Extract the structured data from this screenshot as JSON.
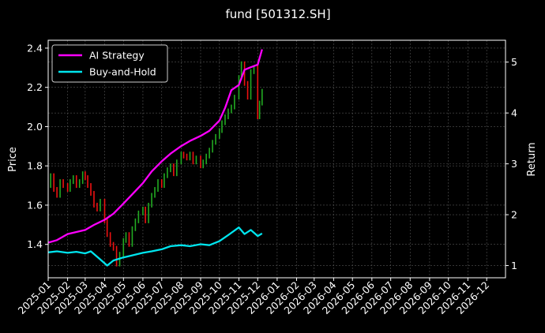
{
  "chart_data": {
    "type": "line",
    "title": "fund [501312.SH]",
    "ylabel_left": "Price",
    "ylabel_right": "Return",
    "x_ticks": [
      "2025-01",
      "2025-02",
      "2025-03",
      "2025-04",
      "2025-05",
      "2025-06",
      "2025-07",
      "2025-08",
      "2025-09",
      "2025-10",
      "2025-11",
      "2025-12",
      "2026-01",
      "2026-02",
      "2026-03",
      "2026-04",
      "2026-05",
      "2026-06",
      "2026-07",
      "2026-08",
      "2026-09",
      "2026-10",
      "2026-11",
      "2026-12"
    ],
    "xlim": [
      "2025-01-01",
      "2026-12-31"
    ],
    "ylim_left": [
      1.23,
      2.44
    ],
    "yticks_left": [
      1.4,
      1.6,
      1.8,
      2.0,
      2.2,
      2.4
    ],
    "ylim_right": [
      0.76,
      5.43
    ],
    "yticks_right": [
      1,
      2,
      3,
      4,
      5
    ],
    "grid": true,
    "legend_position": "top-left",
    "colors": {
      "background": "#000000",
      "ai": "#ff00ff",
      "bh": "#00e5ee",
      "up": "#22aa22",
      "down": "#ee1111",
      "grid": "#555555"
    },
    "series": [
      {
        "name": "AI Strategy",
        "axis": "right",
        "dates": [
          "2025-01-01",
          "2025-01-15",
          "2025-02-01",
          "2025-02-15",
          "2025-03-01",
          "2025-03-15",
          "2025-04-01",
          "2025-04-15",
          "2025-05-01",
          "2025-05-15",
          "2025-06-01",
          "2025-06-15",
          "2025-07-01",
          "2025-07-15",
          "2025-08-01",
          "2025-08-15",
          "2025-09-01",
          "2025-09-15",
          "2025-10-01",
          "2025-10-10",
          "2025-10-20",
          "2025-11-01",
          "2025-11-10",
          "2025-11-20",
          "2025-12-01",
          "2025-12-08"
        ],
        "values": [
          1.45,
          1.5,
          1.62,
          1.66,
          1.7,
          1.8,
          1.9,
          2.02,
          2.22,
          2.4,
          2.62,
          2.85,
          3.05,
          3.2,
          3.35,
          3.45,
          3.55,
          3.65,
          3.85,
          4.1,
          4.45,
          4.55,
          4.85,
          4.9,
          4.95,
          5.25
        ]
      },
      {
        "name": "Buy-and-Hold",
        "axis": "right",
        "dates": [
          "2025-01-01",
          "2025-01-15",
          "2025-02-01",
          "2025-02-15",
          "2025-03-01",
          "2025-03-10",
          "2025-03-25",
          "2025-04-05",
          "2025-04-15",
          "2025-05-01",
          "2025-05-15",
          "2025-06-01",
          "2025-06-15",
          "2025-07-01",
          "2025-07-15",
          "2025-08-01",
          "2025-08-15",
          "2025-09-01",
          "2025-09-15",
          "2025-10-01",
          "2025-10-15",
          "2025-11-01",
          "2025-11-10",
          "2025-11-20",
          "2025-12-01",
          "2025-12-08"
        ],
        "values": [
          1.26,
          1.28,
          1.25,
          1.27,
          1.24,
          1.28,
          1.12,
          1.0,
          1.1,
          1.16,
          1.2,
          1.25,
          1.28,
          1.32,
          1.38,
          1.4,
          1.38,
          1.42,
          1.4,
          1.48,
          1.6,
          1.75,
          1.62,
          1.7,
          1.58,
          1.63
        ]
      }
    ],
    "price_series": {
      "name": "Price",
      "axis": "left",
      "dates": [
        "2025-01-01",
        "2025-01-05",
        "2025-01-10",
        "2025-01-15",
        "2025-01-20",
        "2025-01-25",
        "2025-02-01",
        "2025-02-05",
        "2025-02-10",
        "2025-02-15",
        "2025-02-20",
        "2025-02-25",
        "2025-03-01",
        "2025-03-05",
        "2025-03-10",
        "2025-03-15",
        "2025-03-20",
        "2025-03-25",
        "2025-04-01",
        "2025-04-05",
        "2025-04-10",
        "2025-04-15",
        "2025-04-20",
        "2025-04-25",
        "2025-05-01",
        "2025-05-05",
        "2025-05-10",
        "2025-05-15",
        "2025-05-20",
        "2025-05-25",
        "2025-06-01",
        "2025-06-05",
        "2025-06-10",
        "2025-06-15",
        "2025-06-20",
        "2025-06-25",
        "2025-07-01",
        "2025-07-05",
        "2025-07-10",
        "2025-07-15",
        "2025-07-20",
        "2025-07-25",
        "2025-08-01",
        "2025-08-05",
        "2025-08-10",
        "2025-08-15",
        "2025-08-20",
        "2025-08-25",
        "2025-09-01",
        "2025-09-05",
        "2025-09-10",
        "2025-09-15",
        "2025-09-20",
        "2025-09-25",
        "2025-10-01",
        "2025-10-05",
        "2025-10-10",
        "2025-10-15",
        "2025-10-20",
        "2025-10-25",
        "2025-11-01",
        "2025-11-05",
        "2025-11-10",
        "2025-11-15",
        "2025-11-20",
        "2025-11-25",
        "2025-12-01",
        "2025-12-04",
        "2025-12-08"
      ],
      "values": [
        1.7,
        1.75,
        1.68,
        1.65,
        1.72,
        1.7,
        1.68,
        1.72,
        1.74,
        1.7,
        1.72,
        1.76,
        1.74,
        1.7,
        1.66,
        1.6,
        1.58,
        1.62,
        1.52,
        1.45,
        1.4,
        1.38,
        1.3,
        1.35,
        1.42,
        1.45,
        1.4,
        1.48,
        1.52,
        1.56,
        1.58,
        1.52,
        1.6,
        1.65,
        1.68,
        1.72,
        1.7,
        1.75,
        1.78,
        1.8,
        1.76,
        1.82,
        1.86,
        1.85,
        1.84,
        1.86,
        1.82,
        1.84,
        1.8,
        1.82,
        1.85,
        1.88,
        1.92,
        1.95,
        1.98,
        2.02,
        2.05,
        2.08,
        2.1,
        2.15,
        2.25,
        2.32,
        2.22,
        2.15,
        2.28,
        2.3,
        2.05,
        2.12,
        2.18
      ]
    }
  }
}
